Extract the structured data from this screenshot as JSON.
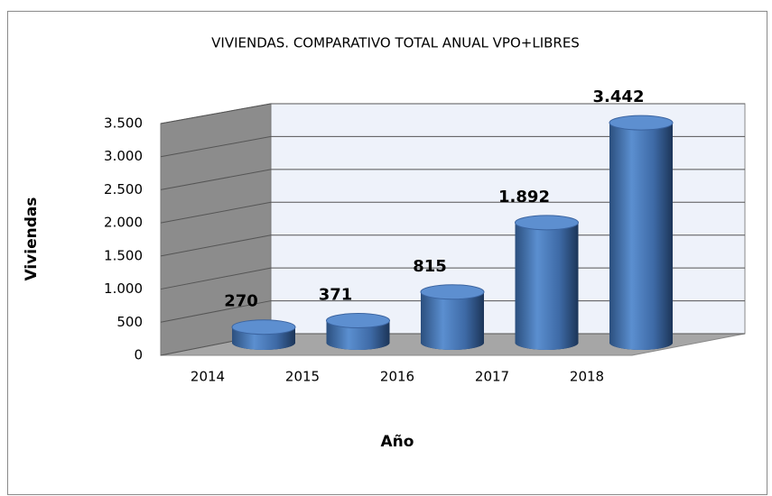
{
  "chart_data": {
    "type": "bar3d",
    "title": "VIVIENDAS. COMPARATIVO TOTAL ANUAL VPO+LIBRES",
    "x_label": "Año",
    "y_label": "Viviendas",
    "categories": [
      "2014",
      "2015",
      "2016",
      "2017",
      "2018"
    ],
    "values": [
      270,
      371,
      815,
      1892,
      3442
    ],
    "value_labels": [
      "270",
      "371",
      "815",
      "1.892",
      "3.442"
    ],
    "color": "#4f81bd",
    "ylim": [
      0,
      3500
    ],
    "yticks": [
      0,
      500,
      {
        "value": 1000,
        "label": "1.000"
      },
      {
        "value": 1500,
        "label": "1.500"
      },
      {
        "value": 2000,
        "label": "2.000"
      },
      {
        "value": 2500,
        "label": "2.500"
      },
      {
        "value": 3000,
        "label": "3.000"
      },
      {
        "value": 3500,
        "label": "3.500"
      }
    ],
    "grid": true
  }
}
